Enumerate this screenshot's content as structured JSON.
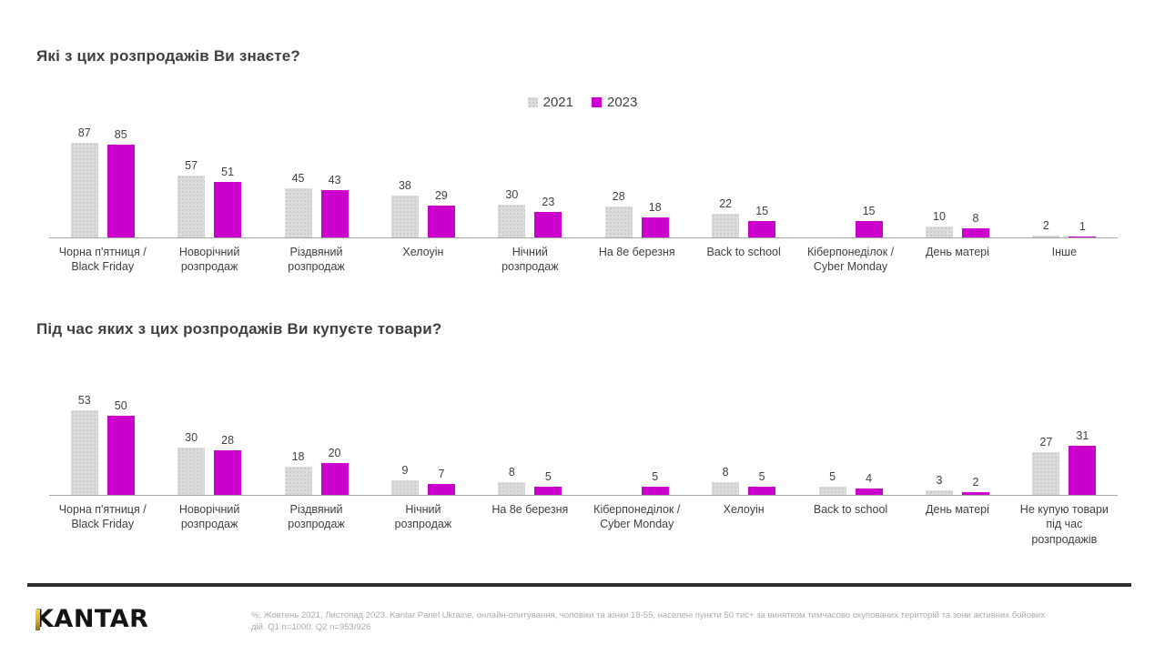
{
  "slide": {
    "title1": "Які з цих розпродажів Ви знаєте?",
    "title2": "Під час яких з цих розпродажів Ви купуєте товари?",
    "logo_text": "KANTAR",
    "footnote": "%, Жовтень 2021, Листопад 2023. Kantar Panel Ukraine, онлайн-опитування, чоловіки та жінки 18-55, населені пункти 50 тис+ за винятком тимчасово окупованих територій та зони активних бойових дій. Q1 n=1000. Q2 n=953/926"
  },
  "legend": {
    "items": [
      {
        "label": "2021"
      },
      {
        "label": "2023"
      }
    ]
  },
  "colors": {
    "series_2021": "#dbdbdb",
    "series_2023": "#cc00cc",
    "text": "#404040",
    "footnote_text": "#ababab",
    "axis_line": "#a6a6a6",
    "divider": "#2e2e2e",
    "logo_gold": "#e0b32e"
  },
  "chart_data": [
    {
      "type": "bar",
      "title": "Які з цих розпродажів Ви знаєте?",
      "categories": [
        "Чорна п'ятниця / Black Friday",
        "Новорічний розпродаж",
        "Різдвяний розпродаж",
        "Хелоуін",
        "Нічний розпродаж",
        "На 8е березня",
        "Back to school",
        "Кіберпонеділок / Cyber Monday",
        "День матері",
        "Інше"
      ],
      "series": [
        {
          "name": "2021",
          "values": [
            87,
            57,
            45,
            38,
            30,
            28,
            22,
            null,
            10,
            2
          ]
        },
        {
          "name": "2023",
          "values": [
            85,
            51,
            43,
            29,
            23,
            18,
            15,
            15,
            8,
            1
          ]
        }
      ],
      "ylim": [
        0,
        100
      ],
      "grid": false,
      "value_labels": true,
      "legend_position": "top-center"
    },
    {
      "type": "bar",
      "title": "Під час яких з цих розпродажів Ви купуєте товари?",
      "categories": [
        "Чорна п'ятниця / Black Friday",
        "Новорічний розпродаж",
        "Різдвяний розпродаж",
        "Нічний розпродаж",
        "На 8е березня",
        "Кіберпонеділок / Cyber Monday",
        "Хелоуін",
        "Back to school",
        "День матері",
        "Не купую товари під час розпродажів"
      ],
      "series": [
        {
          "name": "2021",
          "values": [
            53,
            30,
            18,
            9,
            8,
            null,
            8,
            5,
            3,
            27
          ]
        },
        {
          "name": "2023",
          "values": [
            50,
            28,
            20,
            7,
            5,
            5,
            5,
            4,
            2,
            31
          ]
        }
      ],
      "ylim": [
        0,
        60
      ],
      "grid": false,
      "value_labels": true,
      "legend_position": "none"
    }
  ]
}
